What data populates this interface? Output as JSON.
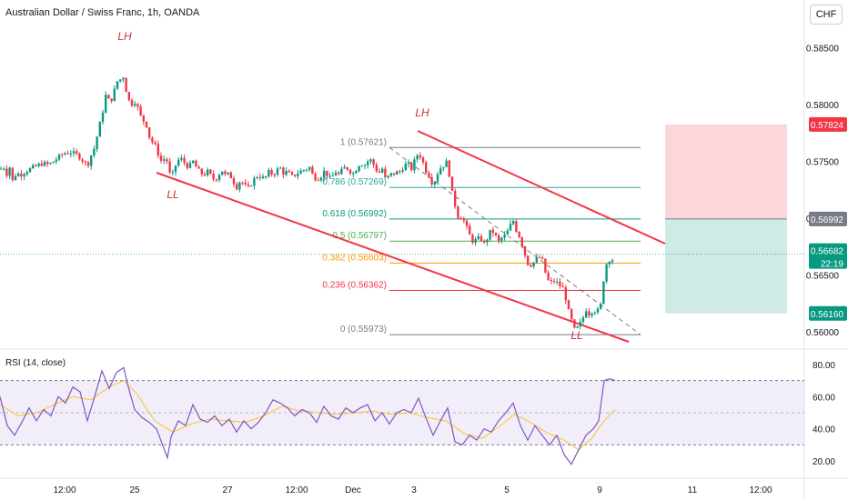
{
  "header": {
    "title": "Australian Dollar / Swiss Franc, 1h, OANDA",
    "currency": "CHF"
  },
  "chart_data": {
    "type": "candlestick",
    "title": "Australian Dollar / Swiss Franc, 1h, OANDA",
    "price_axis": {
      "ticks": [
        "0.58500",
        "0.58000",
        "0.57500",
        "0.57000",
        "0.56500",
        "0.56000"
      ],
      "ylim": [
        0.5591,
        0.5876
      ]
    },
    "time_axis": [
      "12:00",
      "25",
      "27",
      "12:00",
      "Dec",
      "3",
      "5",
      "9",
      "11",
      "12:00"
    ],
    "fib": [
      {
        "label": "1 (0.57621)",
        "value": 0.57621,
        "color": "#787b86"
      },
      {
        "label": "0.786 (0.57269)",
        "value": 0.57269,
        "color": "#26a69a"
      },
      {
        "label": "0.618 (0.56992)",
        "value": 0.56992,
        "color": "#089981"
      },
      {
        "label": "0.5 (0.56797)",
        "value": 0.56797,
        "color": "#4caf50"
      },
      {
        "label": "0.382 (0.56603)",
        "value": 0.56603,
        "color": "#ff9800"
      },
      {
        "label": "0.236 (0.56362)",
        "value": 0.56362,
        "color": "#f23645"
      },
      {
        "label": "0 (0.55973)",
        "value": 0.55973,
        "color": "#787b86"
      }
    ],
    "annotations": [
      {
        "text": "LH",
        "kind": "high"
      },
      {
        "text": "LL",
        "kind": "low"
      },
      {
        "text": "LH",
        "kind": "high"
      },
      {
        "text": "LL",
        "kind": "low"
      }
    ],
    "price_labels": [
      {
        "text": "0.57824",
        "value": 0.57824,
        "color": "#f23645"
      },
      {
        "text": "0.56992",
        "value": 0.56992,
        "color": "#787b86"
      },
      {
        "text": "0.56682",
        "value": 0.56682,
        "color": "#089981"
      },
      {
        "text": "22:19",
        "value": 0.56682,
        "color": "#089981"
      },
      {
        "text": "0.56160",
        "value": 0.5616,
        "color": "#089981"
      }
    ],
    "position": {
      "target": 0.57824,
      "entry": 0.56992,
      "stop": 0.5616
    },
    "last_price": 0.56682,
    "candle_path": [
      [
        0,
        0.5743
      ],
      [
        4,
        0.5745
      ],
      [
        8,
        0.5738
      ],
      [
        10,
        0.5747
      ],
      [
        14,
        0.5732
      ],
      [
        18,
        0.574
      ],
      [
        22,
        0.5738
      ],
      [
        30,
        0.5742
      ],
      [
        38,
        0.5745
      ],
      [
        46,
        0.5748
      ],
      [
        54,
        0.5747
      ],
      [
        62,
        0.5752
      ],
      [
        70,
        0.5757
      ],
      [
        78,
        0.5758
      ],
      [
        86,
        0.5755
      ],
      [
        92,
        0.575
      ],
      [
        96,
        0.5746
      ],
      [
        100,
        0.5755
      ],
      [
        104,
        0.5762
      ],
      [
        108,
        0.5777
      ],
      [
        112,
        0.579
      ],
      [
        116,
        0.5808
      ],
      [
        120,
        0.5803
      ],
      [
        124,
        0.5806
      ],
      [
        128,
        0.582
      ],
      [
        132,
        0.5822
      ],
      [
        136,
        0.5825
      ],
      [
        140,
        0.5806
      ],
      [
        144,
        0.58
      ],
      [
        148,
        0.5803
      ],
      [
        152,
        0.5796
      ],
      [
        156,
        0.5786
      ],
      [
        160,
        0.5785
      ],
      [
        164,
        0.5772
      ],
      [
        168,
        0.5766
      ],
      [
        172,
        0.5762
      ],
      [
        176,
        0.575
      ],
      [
        180,
        0.5752
      ],
      [
        184,
        0.575
      ],
      [
        188,
        0.5733
      ],
      [
        192,
        0.5745
      ],
      [
        196,
        0.5751
      ],
      [
        200,
        0.5752
      ],
      [
        204,
        0.5747
      ],
      [
        208,
        0.5745
      ],
      [
        212,
        0.575
      ],
      [
        216,
        0.5744
      ],
      [
        220,
        0.574
      ],
      [
        224,
        0.5738
      ],
      [
        228,
        0.5741
      ],
      [
        232,
        0.5737
      ],
      [
        236,
        0.5733
      ],
      [
        240,
        0.5738
      ],
      [
        244,
        0.5742
      ],
      [
        248,
        0.5737
      ],
      [
        252,
        0.5739
      ],
      [
        256,
        0.5733
      ],
      [
        260,
        0.5727
      ],
      [
        264,
        0.5733
      ],
      [
        268,
        0.573
      ],
      [
        272,
        0.5725
      ],
      [
        276,
        0.573
      ],
      [
        280,
        0.5735
      ],
      [
        284,
        0.5738
      ],
      [
        288,
        0.5735
      ],
      [
        292,
        0.5736
      ],
      [
        296,
        0.5741
      ],
      [
        300,
        0.5738
      ],
      [
        304,
        0.5742
      ],
      [
        308,
        0.5744
      ],
      [
        312,
        0.5739
      ],
      [
        316,
        0.5741
      ],
      [
        320,
        0.5736
      ],
      [
        324,
        0.5738
      ],
      [
        328,
        0.574
      ],
      [
        332,
        0.5742
      ],
      [
        336,
        0.5743
      ],
      [
        340,
        0.5745
      ],
      [
        344,
        0.5737
      ],
      [
        348,
        0.5735
      ],
      [
        352,
        0.5736
      ],
      [
        356,
        0.5741
      ],
      [
        360,
        0.5738
      ],
      [
        364,
        0.5733
      ],
      [
        368,
        0.5742
      ],
      [
        372,
        0.5738
      ],
      [
        376,
        0.5742
      ],
      [
        380,
        0.5745
      ],
      [
        384,
        0.5742
      ],
      [
        388,
        0.5739
      ],
      [
        392,
        0.5744
      ],
      [
        396,
        0.5749
      ],
      [
        400,
        0.5746
      ],
      [
        404,
        0.575
      ],
      [
        408,
        0.5751
      ],
      [
        412,
        0.5745
      ],
      [
        416,
        0.5739
      ],
      [
        420,
        0.5744
      ],
      [
        424,
        0.5733
      ],
      [
        428,
        0.5738
      ],
      [
        432,
        0.5739
      ],
      [
        436,
        0.574
      ],
      [
        440,
        0.5741
      ],
      [
        444,
        0.5746
      ],
      [
        448,
        0.5748
      ],
      [
        452,
        0.5743
      ],
      [
        456,
        0.5751
      ],
      [
        460,
        0.5758
      ],
      [
        464,
        0.5751
      ],
      [
        468,
        0.5742
      ],
      [
        472,
        0.5737
      ],
      [
        476,
        0.5729
      ],
      [
        480,
        0.5738
      ],
      [
        484,
        0.5744
      ],
      [
        488,
        0.5747
      ],
      [
        492,
        0.575
      ],
      [
        496,
        0.5725
      ],
      [
        500,
        0.5712
      ],
      [
        504,
        0.57
      ],
      [
        508,
        0.5701
      ],
      [
        512,
        0.5693
      ],
      [
        516,
        0.5685
      ],
      [
        520,
        0.5679
      ],
      [
        524,
        0.5681
      ],
      [
        528,
        0.5683
      ],
      [
        532,
        0.5677
      ],
      [
        536,
        0.5683
      ],
      [
        540,
        0.569
      ],
      [
        544,
        0.5685
      ],
      [
        548,
        0.5679
      ],
      [
        552,
        0.5683
      ],
      [
        556,
        0.5685
      ],
      [
        560,
        0.5692
      ],
      [
        564,
        0.5698
      ],
      [
        568,
        0.5688
      ],
      [
        572,
        0.5682
      ],
      [
        576,
        0.567
      ],
      [
        580,
        0.566
      ],
      [
        584,
        0.5659
      ],
      [
        588,
        0.5662
      ],
      [
        592,
        0.5666
      ],
      [
        596,
        0.5663
      ],
      [
        600,
        0.565
      ],
      [
        604,
        0.5642
      ],
      [
        608,
        0.5645
      ],
      [
        612,
        0.5643
      ],
      [
        616,
        0.564
      ],
      [
        620,
        0.5637
      ],
      [
        624,
        0.562
      ],
      [
        628,
        0.561
      ],
      [
        632,
        0.56
      ],
      [
        636,
        0.5605
      ],
      [
        640,
        0.561
      ],
      [
        644,
        0.562
      ],
      [
        648,
        0.5615
      ],
      [
        652,
        0.562
      ],
      [
        656,
        0.5617
      ],
      [
        660,
        0.5622
      ],
      [
        664,
        0.565
      ],
      [
        668,
        0.5665
      ],
      [
        672,
        0.5662
      ],
      [
        676,
        0.5668
      ]
    ],
    "rsi": {
      "label": "RSI (14, close)",
      "axis": [
        "80.00",
        "60.00",
        "40.00",
        "20.00"
      ],
      "upper": 70,
      "middle": 50,
      "lower": 30,
      "rsi_path": [
        [
          0,
          60
        ],
        [
          8,
          42
        ],
        [
          16,
          36
        ],
        [
          24,
          44
        ],
        [
          32,
          53
        ],
        [
          40,
          45
        ],
        [
          48,
          52
        ],
        [
          56,
          48
        ],
        [
          64,
          60
        ],
        [
          72,
          56
        ],
        [
          80,
          66
        ],
        [
          88,
          63
        ],
        [
          96,
          45
        ],
        [
          104,
          60
        ],
        [
          112,
          76
        ],
        [
          120,
          65
        ],
        [
          128,
          75
        ],
        [
          136,
          78
        ],
        [
          140,
          68
        ],
        [
          148,
          52
        ],
        [
          156,
          47
        ],
        [
          164,
          44
        ],
        [
          172,
          40
        ],
        [
          180,
          28
        ],
        [
          184,
          22
        ],
        [
          188,
          35
        ],
        [
          196,
          45
        ],
        [
          204,
          42
        ],
        [
          212,
          55
        ],
        [
          220,
          46
        ],
        [
          228,
          44
        ],
        [
          236,
          48
        ],
        [
          244,
          42
        ],
        [
          252,
          46
        ],
        [
          260,
          38
        ],
        [
          268,
          45
        ],
        [
          276,
          40
        ],
        [
          284,
          44
        ],
        [
          292,
          50
        ],
        [
          300,
          58
        ],
        [
          308,
          56
        ],
        [
          316,
          53
        ],
        [
          324,
          48
        ],
        [
          332,
          52
        ],
        [
          340,
          50
        ],
        [
          348,
          44
        ],
        [
          356,
          54
        ],
        [
          364,
          48
        ],
        [
          372,
          46
        ],
        [
          380,
          53
        ],
        [
          388,
          50
        ],
        [
          396,
          53
        ],
        [
          404,
          55
        ],
        [
          412,
          45
        ],
        [
          420,
          50
        ],
        [
          428,
          43
        ],
        [
          436,
          50
        ],
        [
          444,
          52
        ],
        [
          452,
          50
        ],
        [
          460,
          59
        ],
        [
          468,
          47
        ],
        [
          476,
          36
        ],
        [
          484,
          45
        ],
        [
          492,
          53
        ],
        [
          500,
          32
        ],
        [
          508,
          30
        ],
        [
          516,
          36
        ],
        [
          524,
          33
        ],
        [
          532,
          40
        ],
        [
          540,
          38
        ],
        [
          548,
          45
        ],
        [
          556,
          50
        ],
        [
          564,
          56
        ],
        [
          572,
          42
        ],
        [
          580,
          33
        ],
        [
          588,
          42
        ],
        [
          596,
          36
        ],
        [
          604,
          30
        ],
        [
          612,
          36
        ],
        [
          620,
          24
        ],
        [
          628,
          18
        ],
        [
          636,
          27
        ],
        [
          644,
          36
        ],
        [
          652,
          40
        ],
        [
          658,
          45
        ],
        [
          664,
          70
        ],
        [
          670,
          71
        ],
        [
          676,
          70
        ]
      ],
      "ma_path": [
        [
          0,
          55
        ],
        [
          20,
          48
        ],
        [
          40,
          50
        ],
        [
          60,
          55
        ],
        [
          80,
          60
        ],
        [
          100,
          58
        ],
        [
          120,
          66
        ],
        [
          136,
          70
        ],
        [
          150,
          62
        ],
        [
          170,
          45
        ],
        [
          190,
          38
        ],
        [
          210,
          43
        ],
        [
          230,
          46
        ],
        [
          250,
          45
        ],
        [
          270,
          44
        ],
        [
          290,
          48
        ],
        [
          310,
          54
        ],
        [
          330,
          51
        ],
        [
          350,
          50
        ],
        [
          370,
          49
        ],
        [
          390,
          50
        ],
        [
          410,
          51
        ],
        [
          430,
          49
        ],
        [
          450,
          50
        ],
        [
          470,
          47
        ],
        [
          490,
          45
        ],
        [
          510,
          37
        ],
        [
          530,
          34
        ],
        [
          550,
          42
        ],
        [
          565,
          49
        ],
        [
          580,
          45
        ],
        [
          600,
          38
        ],
        [
          620,
          33
        ],
        [
          636,
          27
        ],
        [
          650,
          34
        ],
        [
          664,
          45
        ],
        [
          676,
          52
        ]
      ]
    }
  }
}
